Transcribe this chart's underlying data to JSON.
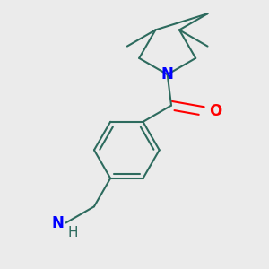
{
  "background_color": "#ebebeb",
  "bond_color": "#2d6b5e",
  "nitrogen_color": "#0000ff",
  "oxygen_color": "#ff0000",
  "bond_width": 1.5,
  "font_size_atom": 11,
  "figsize": [
    3.0,
    3.0
  ],
  "dpi": 100,
  "xlim": [
    -0.3,
    2.5
  ],
  "ylim": [
    -1.2,
    2.2
  ]
}
